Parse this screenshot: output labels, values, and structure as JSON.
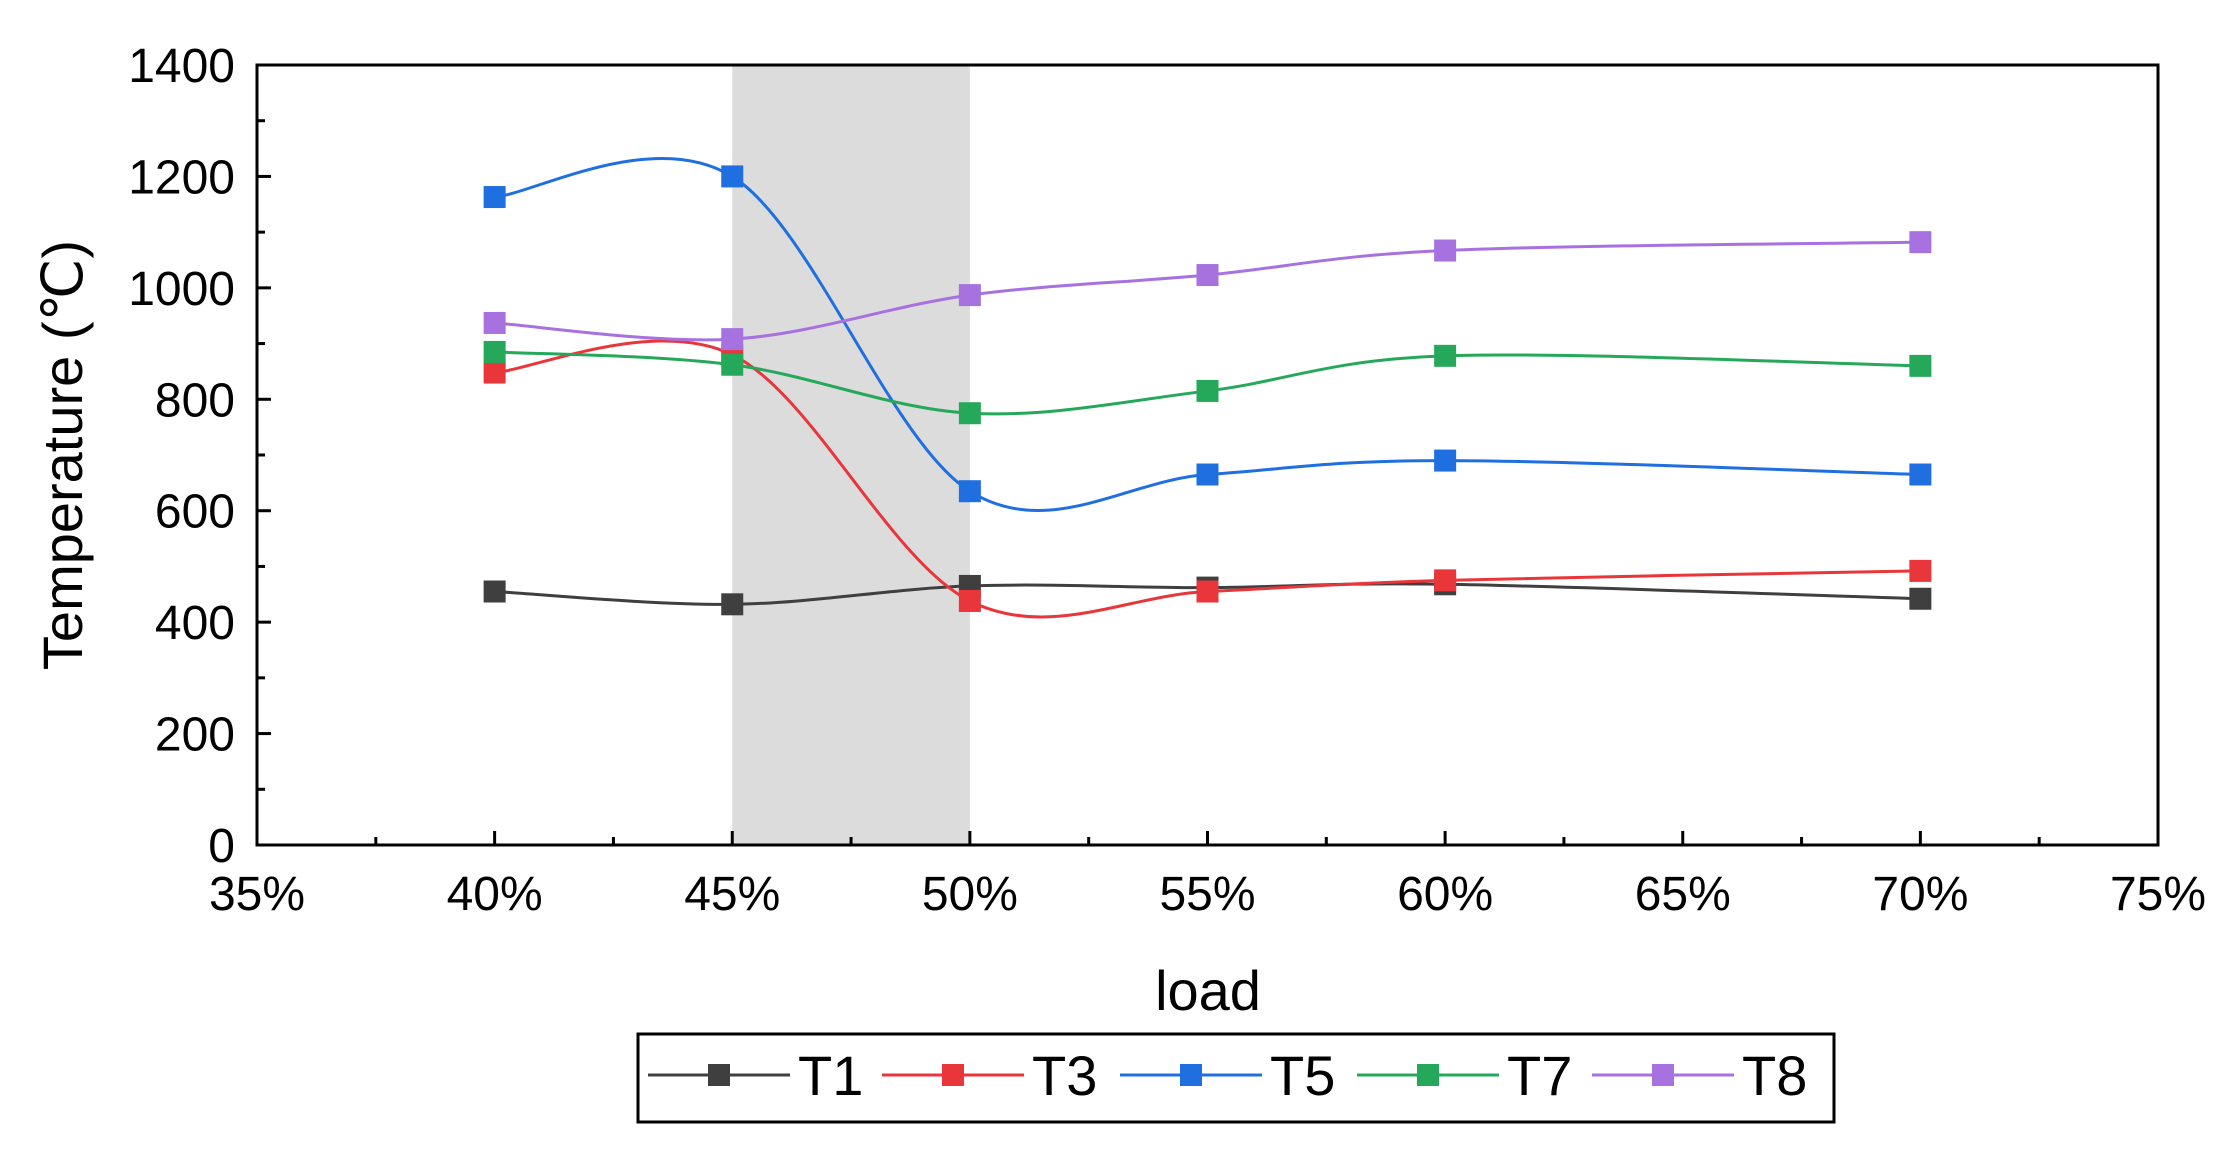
{
  "chart_data": {
    "type": "line",
    "title": "",
    "xlabel": "load",
    "ylabel": "Temperature (℃)",
    "xlim": [
      35,
      75
    ],
    "ylim": [
      0,
      1400
    ],
    "x_ticks": [
      "35%",
      "40%",
      "45%",
      "50%",
      "55%",
      "60%",
      "65%",
      "70%",
      "75%"
    ],
    "y_ticks": [
      "0",
      "200",
      "400",
      "600",
      "800",
      "1000",
      "1200",
      "1400"
    ],
    "x": [
      40,
      45,
      50,
      55,
      60,
      70
    ],
    "shaded_region": [
      45,
      50
    ],
    "grid": false,
    "legend_position": "bottom",
    "series": [
      {
        "name": "T1",
        "color": "#3f3f3f",
        "values": [
          455,
          432,
          465,
          462,
          468,
          442
        ]
      },
      {
        "name": "T3",
        "color": "#e8363a",
        "values": [
          848,
          880,
          438,
          455,
          475,
          492
        ]
      },
      {
        "name": "T5",
        "color": "#1f6fe0",
        "values": [
          1163,
          1200,
          635,
          665,
          690,
          665
        ]
      },
      {
        "name": "T7",
        "color": "#26a85a",
        "values": [
          885,
          862,
          775,
          815,
          878,
          860
        ]
      },
      {
        "name": "T8",
        "color": "#a772e0",
        "values": [
          937,
          908,
          987,
          1023,
          1067,
          1082
        ]
      }
    ]
  }
}
